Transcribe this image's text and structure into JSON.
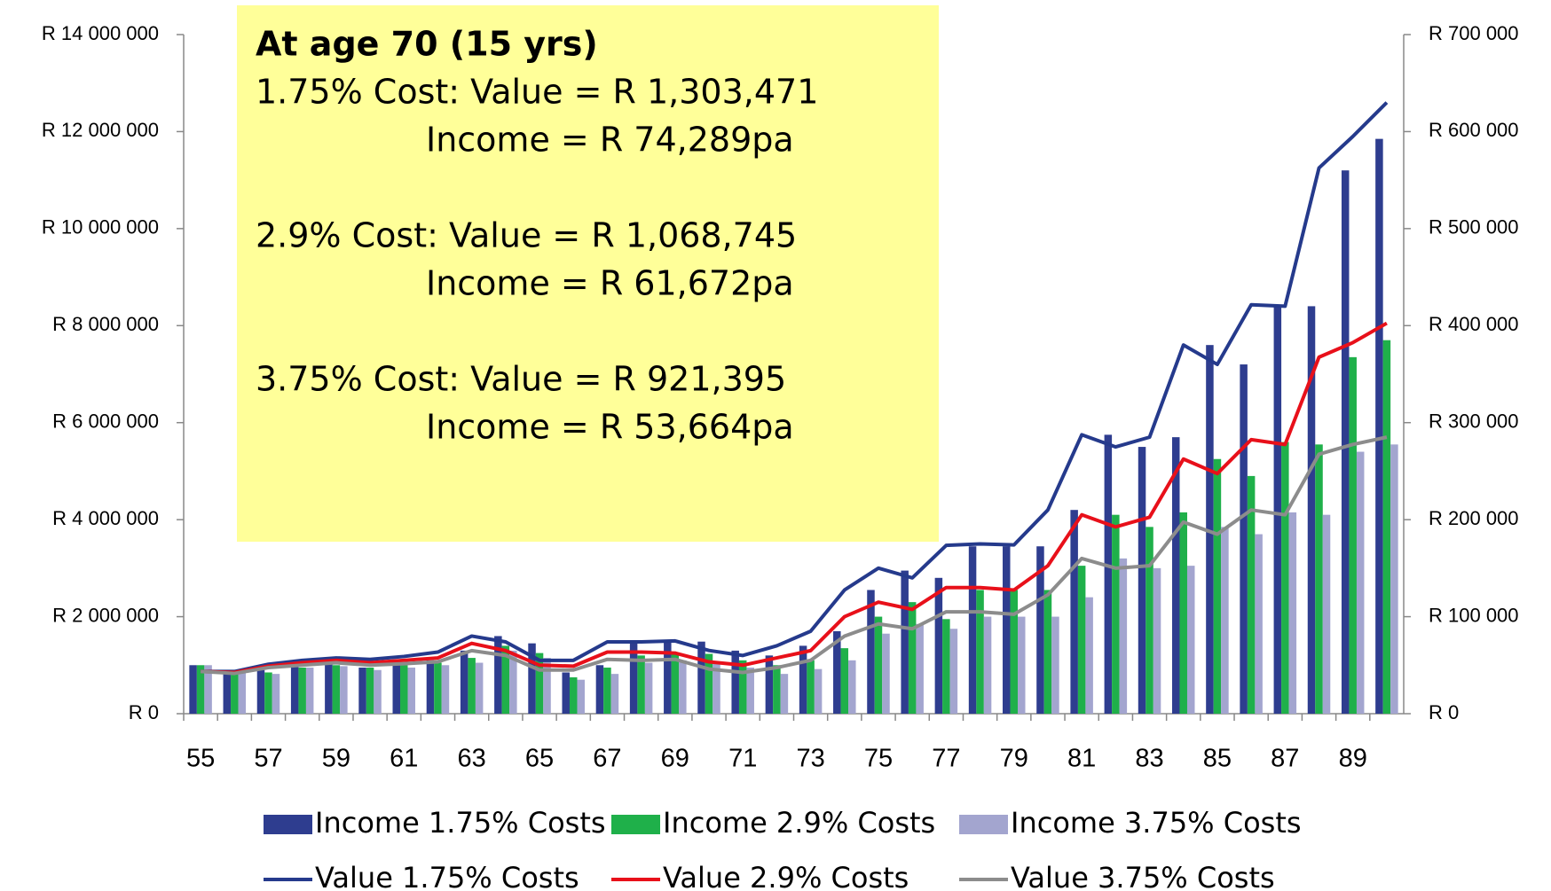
{
  "chart_data": {
    "type": "bar-line",
    "categories": [
      "55",
      null,
      "57",
      null,
      "59",
      null,
      "61",
      null,
      "63",
      null,
      "65",
      null,
      "67",
      null,
      "69",
      null,
      "71",
      null,
      "73",
      null,
      "75",
      null,
      "77",
      null,
      "79",
      null,
      "81",
      null,
      "83",
      null,
      "85",
      null,
      "87",
      null,
      "89",
      null
    ],
    "annotations": [
      {
        "text": "At age 70  (15 yrs)",
        "bold": true,
        "indent": false
      },
      {
        "text": "1.75% Cost: Value = R 1,303,471",
        "bold": false,
        "indent": false
      },
      {
        "text": "Income = R 74,289pa",
        "bold": false,
        "indent": true
      },
      {
        "text": "2.9% Cost: Value = R 1,068,745",
        "bold": false,
        "indent": false
      },
      {
        "text": "Income = R 61,672pa",
        "bold": false,
        "indent": true
      },
      {
        "text": "3.75% Cost: Value = R  921,395",
        "bold": false,
        "indent": false
      },
      {
        "text": "Income = R  53,664pa",
        "bold": false,
        "indent": true
      }
    ],
    "ylim": [
      0,
      14000000
    ],
    "yticks": [
      {
        "value": 0,
        "label": "R 0"
      },
      {
        "value": 2000000,
        "label": "R 2 000 000"
      },
      {
        "value": 4000000,
        "label": "R 4 000 000"
      },
      {
        "value": 6000000,
        "label": "R 6 000 000"
      },
      {
        "value": 8000000,
        "label": "R 8 000 000"
      },
      {
        "value": 10000000,
        "label": "R 10 000 000"
      },
      {
        "value": 12000000,
        "label": "R 12 000 000"
      },
      {
        "value": 14000000,
        "label": "R 14 000 000"
      }
    ],
    "y2lim": [
      0,
      700000
    ],
    "y2ticks": [
      {
        "value": 0,
        "label": "R 0"
      },
      {
        "value": 100000,
        "label": "R 100 000"
      },
      {
        "value": 200000,
        "label": "R 200 000"
      },
      {
        "value": 300000,
        "label": "R 300 000"
      },
      {
        "value": 400000,
        "label": "R 400 000"
      },
      {
        "value": 500000,
        "label": "R 500 000"
      },
      {
        "value": 600000,
        "label": "R 600 000"
      },
      {
        "value": 700000,
        "label": "R 700 000"
      }
    ],
    "grid": false,
    "series": [
      {
        "name": "Income 1.75% Costs",
        "kind": "bar",
        "axis": "y2",
        "color": "#2e3d8f",
        "values": [
          50000,
          42500,
          45000,
          50000,
          52500,
          47500,
          50000,
          55000,
          65000,
          80000,
          72500,
          42500,
          50000,
          72500,
          75000,
          74289,
          65000,
          60000,
          70000,
          85000,
          127500,
          147500,
          140000,
          172500,
          172500,
          172500,
          210000,
          287500,
          275000,
          285000,
          380000,
          360000,
          420000,
          420000,
          560000,
          592500
        ]
      },
      {
        "name": "Income 2.9% Costs",
        "kind": "bar",
        "axis": "y2",
        "color": "#1fb04a",
        "values": [
          50000,
          42500,
          42500,
          47500,
          50000,
          47500,
          50000,
          52500,
          57500,
          70000,
          62500,
          37500,
          47500,
          60000,
          62500,
          61672,
          55000,
          50000,
          55000,
          67500,
          100000,
          115000,
          97500,
          127500,
          127500,
          127500,
          152500,
          205000,
          192500,
          207500,
          262500,
          245000,
          280000,
          277500,
          367500,
          385000
        ]
      },
      {
        "name": "Income 3.75% Costs",
        "kind": "bar",
        "axis": "y2",
        "color": "#a3a5cf",
        "values": [
          50000,
          42500,
          41000,
          47500,
          49000,
          45000,
          47500,
          50000,
          52500,
          65000,
          57500,
          35000,
          41000,
          52500,
          55000,
          53664,
          47500,
          41000,
          46000,
          55000,
          82500,
          92500,
          87500,
          100000,
          100000,
          100000,
          120000,
          160000,
          150000,
          152500,
          192500,
          185000,
          207500,
          205000,
          270000,
          277500
        ]
      },
      {
        "name": "Value 1.75% Costs",
        "kind": "line",
        "axis": "y",
        "color": "#253a8c",
        "values": [
          870000,
          870000,
          1020000,
          1100000,
          1150000,
          1120000,
          1180000,
          1270000,
          1600000,
          1480000,
          1100000,
          1100000,
          1480000,
          1480000,
          1500000,
          1303471,
          1200000,
          1400000,
          1700000,
          2550000,
          3000000,
          2800000,
          3470000,
          3500000,
          3480000,
          4200000,
          5750000,
          5500000,
          5700000,
          7600000,
          7200000,
          8430000,
          8400000,
          11250000,
          11900000,
          12600000
        ]
      },
      {
        "name": "Value 2.9% Costs",
        "kind": "line",
        "axis": "y",
        "color": "#e8101a",
        "values": [
          870000,
          850000,
          980000,
          1050000,
          1100000,
          1050000,
          1100000,
          1150000,
          1450000,
          1300000,
          1000000,
          980000,
          1270000,
          1270000,
          1250000,
          1068745,
          1000000,
          1150000,
          1300000,
          2000000,
          2300000,
          2150000,
          2600000,
          2600000,
          2550000,
          3050000,
          4100000,
          3850000,
          4050000,
          5250000,
          4950000,
          5650000,
          5550000,
          7350000,
          7650000,
          8050000
        ]
      },
      {
        "name": "Value 3.75% Costs",
        "kind": "line",
        "axis": "y",
        "color": "#8c8c8c",
        "values": [
          870000,
          830000,
          950000,
          1000000,
          1050000,
          1000000,
          1030000,
          1070000,
          1300000,
          1200000,
          900000,
          900000,
          1120000,
          1100000,
          1120000,
          921395,
          850000,
          950000,
          1100000,
          1600000,
          1850000,
          1750000,
          2100000,
          2100000,
          2050000,
          2450000,
          3200000,
          3000000,
          3050000,
          3950000,
          3700000,
          4200000,
          4100000,
          5350000,
          5550000,
          5700000
        ]
      }
    ]
  }
}
